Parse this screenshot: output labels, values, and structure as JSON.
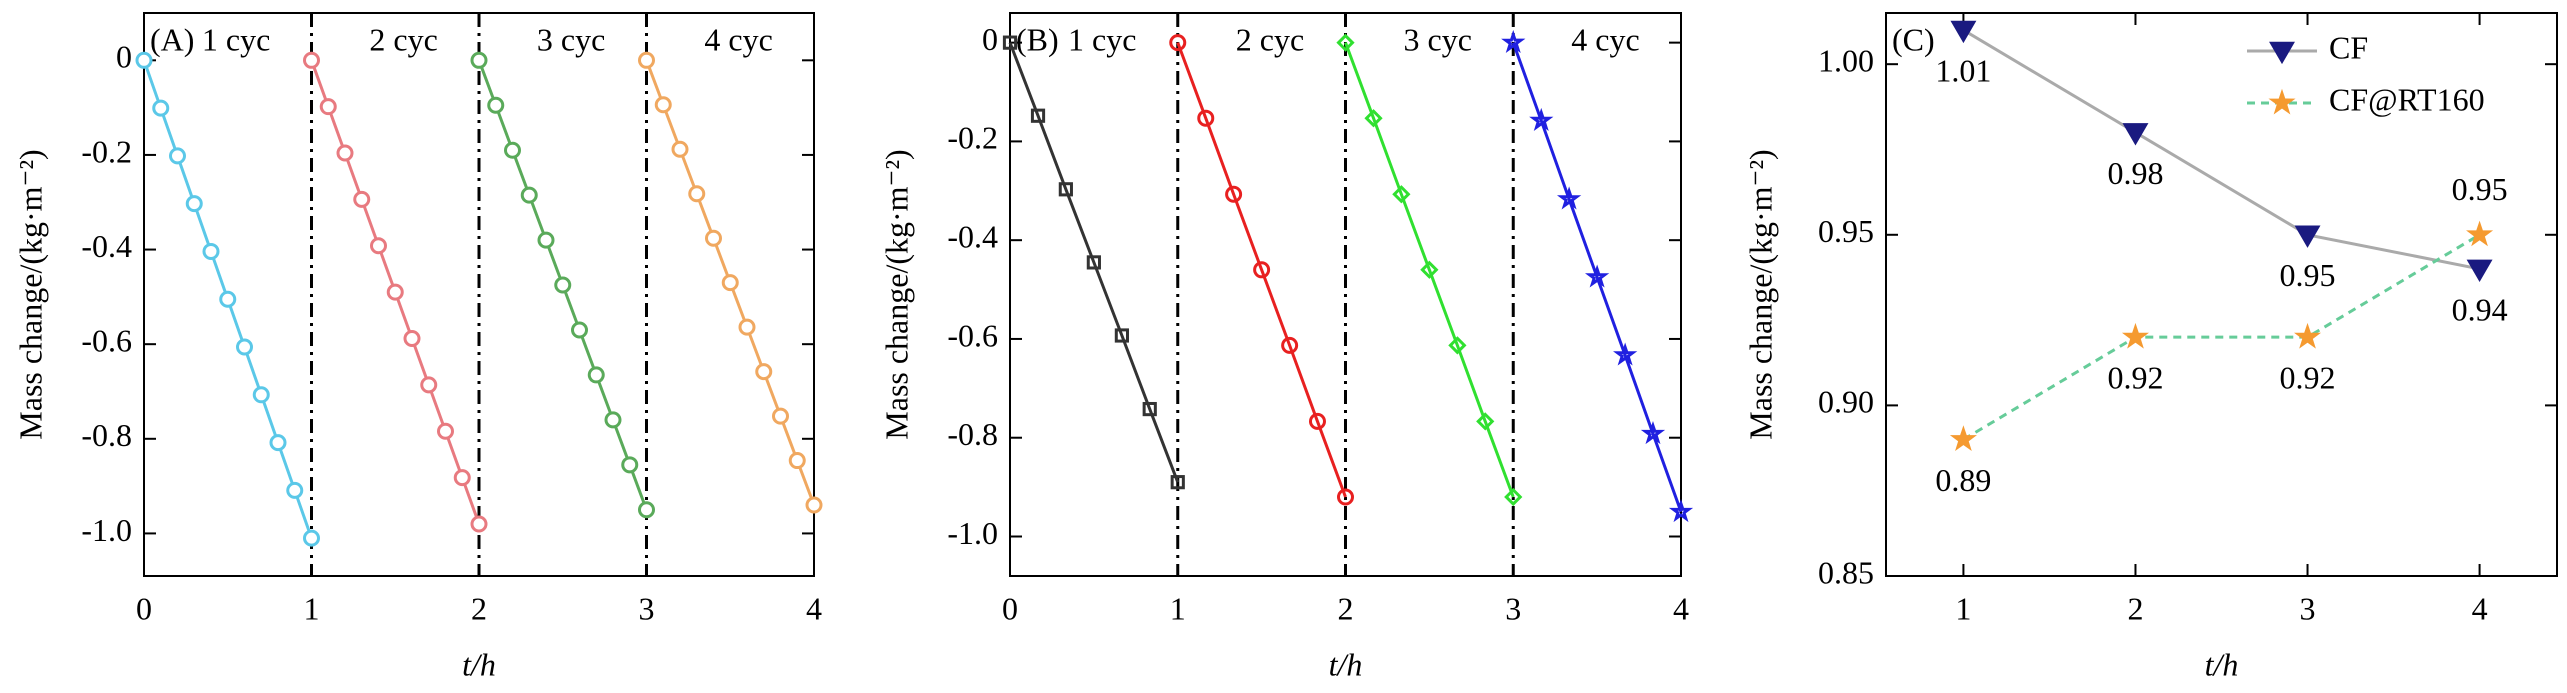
{
  "chart_data": [
    {
      "type": "line",
      "label": "(A)",
      "xlabel": "t/h",
      "ylabel": "Mass change/(kg·m⁻²)",
      "xlim": [
        0,
        4
      ],
      "ylim": [
        -1.09,
        0.1
      ],
      "xticks": [
        0,
        1,
        2,
        3,
        4
      ],
      "yticks": [
        0,
        -0.2,
        -0.4,
        -0.6,
        -0.8,
        {
          "value": -1.0,
          "label": "-1.0"
        }
      ],
      "vlines": [
        1,
        2,
        3
      ],
      "series": [
        {
          "name": "1 cyc",
          "color": "#5bc8e8",
          "marker": "circle",
          "x": [
            0,
            0.1,
            0.2,
            0.3,
            0.4,
            0.5,
            0.6,
            0.7,
            0.8,
            0.9,
            1.0
          ],
          "values": [
            0,
            -0.101,
            -0.202,
            -0.303,
            -0.404,
            -0.505,
            -0.606,
            -0.707,
            -0.808,
            -0.909,
            -1.01
          ]
        },
        {
          "name": "2 cyc",
          "color": "#e87a80",
          "marker": "circle",
          "x": [
            1,
            1.1,
            1.2,
            1.3,
            1.4,
            1.5,
            1.6,
            1.7,
            1.8,
            1.9,
            2.0
          ],
          "values": [
            0,
            -0.098,
            -0.196,
            -0.294,
            -0.392,
            -0.49,
            -0.588,
            -0.686,
            -0.784,
            -0.882,
            -0.98
          ]
        },
        {
          "name": "3 cyc",
          "color": "#5aaa5a",
          "marker": "circle",
          "x": [
            2,
            2.1,
            2.2,
            2.3,
            2.4,
            2.5,
            2.6,
            2.7,
            2.8,
            2.9,
            3.0
          ],
          "values": [
            0,
            -0.095,
            -0.19,
            -0.285,
            -0.38,
            -0.475,
            -0.57,
            -0.665,
            -0.76,
            -0.855,
            -0.95
          ]
        },
        {
          "name": "4 cyc",
          "color": "#f0a860",
          "marker": "circle",
          "x": [
            3,
            3.1,
            3.2,
            3.3,
            3.4,
            3.5,
            3.6,
            3.7,
            3.8,
            3.9,
            4.0
          ],
          "values": [
            0,
            -0.094,
            -0.188,
            -0.282,
            -0.376,
            -0.47,
            -0.564,
            -0.658,
            -0.752,
            -0.846,
            -0.94
          ]
        }
      ]
    },
    {
      "type": "line",
      "label": "(B)",
      "xlabel": "t/h",
      "ylabel": "Mass change/(kg·m⁻²)",
      "xlim": [
        0,
        4
      ],
      "ylim": [
        -1.08,
        0.06
      ],
      "xticks": [
        0,
        1,
        2,
        3,
        4
      ],
      "yticks": [
        0,
        -0.2,
        -0.4,
        -0.6,
        -0.8,
        {
          "value": -1.0,
          "label": "-1.0"
        }
      ],
      "vlines": [
        1,
        2,
        3
      ],
      "series": [
        {
          "name": "1 cyc",
          "color": "#333333",
          "marker": "square",
          "x": [
            0,
            0.167,
            0.333,
            0.5,
            0.667,
            0.833,
            1.0
          ],
          "values": [
            0,
            -0.148,
            -0.297,
            -0.445,
            -0.593,
            -0.742,
            -0.89
          ]
        },
        {
          "name": "2 cyc",
          "color": "#e82020",
          "marker": "circle",
          "x": [
            1,
            1.167,
            1.333,
            1.5,
            1.667,
            1.833,
            2.0
          ],
          "values": [
            0,
            -0.153,
            -0.307,
            -0.46,
            -0.613,
            -0.767,
            -0.92
          ]
        },
        {
          "name": "3 cyc",
          "color": "#30e030",
          "marker": "diamond",
          "x": [
            2,
            2.167,
            2.333,
            2.5,
            2.667,
            2.833,
            3.0
          ],
          "values": [
            0,
            -0.153,
            -0.307,
            -0.46,
            -0.613,
            -0.767,
            -0.92
          ]
        },
        {
          "name": "4 cyc",
          "color": "#2020e0",
          "marker": "star",
          "x": [
            3,
            3.167,
            3.333,
            3.5,
            3.667,
            3.833,
            4.0
          ],
          "values": [
            0,
            -0.158,
            -0.317,
            -0.475,
            -0.633,
            -0.792,
            -0.95
          ]
        }
      ]
    },
    {
      "type": "line",
      "label": "(C)",
      "xlabel": "t/h",
      "ylabel": "Mass change/(kg·m⁻²)",
      "xlim": [
        0.55,
        4.45
      ],
      "ylim": [
        0.85,
        1.015
      ],
      "xticks": [
        1,
        2,
        3,
        4
      ],
      "yticks": [
        0.85,
        {
          "value": 0.9,
          "label": "0.90"
        },
        0.95,
        {
          "value": 1.0,
          "label": "1.00"
        }
      ],
      "legend": "upper right",
      "value_labels_shown": true,
      "series": [
        {
          "name": "CF",
          "color": "#1a1a80",
          "line_color": "#aaaaaa",
          "dash": false,
          "marker": "triangle-down",
          "x": [
            1,
            2,
            3,
            4
          ],
          "values": [
            1.01,
            0.98,
            0.95,
            0.94
          ]
        },
        {
          "name": "CF@RT160",
          "color": "#f59a30",
          "line_color": "#66cc99",
          "dash": true,
          "marker": "star",
          "x": [
            1,
            2,
            3,
            4
          ],
          "values": [
            0.89,
            0.92,
            0.92,
            0.95
          ]
        }
      ]
    }
  ]
}
